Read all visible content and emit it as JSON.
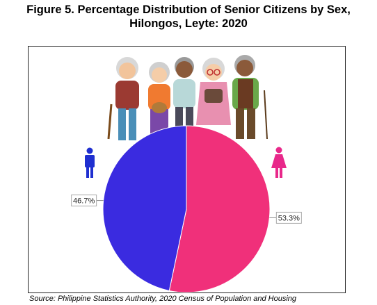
{
  "figure": {
    "title_line1": "Figure 5. Percentage Distribution of Senior Citizens by Sex,",
    "title_line2": "Hilongos, Leyte: 2020",
    "source": "Source: Philippine Statistics Authority, 2020 Census of Population and Housing"
  },
  "chart_data": {
    "type": "pie",
    "title": "Figure 5. Percentage Distribution of Senior Citizens by Sex, Hilongos, Leyte: 2020",
    "slices": [
      {
        "label": "53.3%",
        "value": 53.3,
        "color": "#f0307a",
        "icon": "female-icon",
        "icon_color": "#e8288a"
      },
      {
        "label": "46.7%",
        "value": 46.7,
        "color": "#3a2be0",
        "icon": "male-icon",
        "icon_color": "#1f2fd0"
      }
    ]
  },
  "illustration": {
    "icon": "senior-citizens-group-illustration"
  }
}
